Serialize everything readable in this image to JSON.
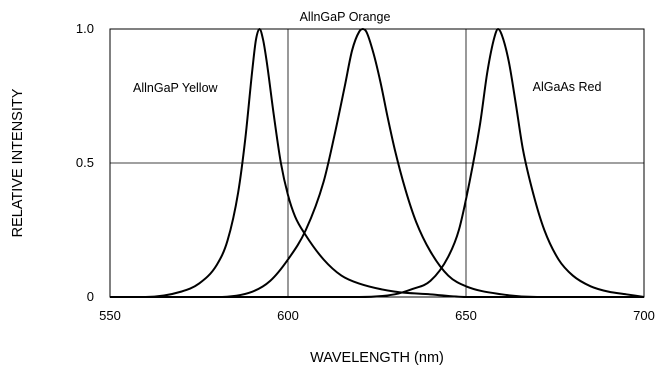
{
  "chart_data": {
    "type": "line",
    "title": "",
    "xlabel": "WAVELENGTH (nm)",
    "ylabel": "RELATIVE INTENSITY",
    "xlim": [
      550,
      700
    ],
    "ylim": [
      0,
      1.0
    ],
    "x_ticks": [
      {
        "value": 550,
        "label": "550"
      },
      {
        "value": 600,
        "label": "600"
      },
      {
        "value": 650,
        "label": "650"
      },
      {
        "value": 700,
        "label": "700"
      }
    ],
    "y_ticks": [
      {
        "value": 0,
        "label": "0"
      },
      {
        "value": 0.5,
        "label": "0.5"
      },
      {
        "value": 1.0,
        "label": "1.0"
      }
    ],
    "grid": true,
    "legend": "none (series labelled directly on the plot)",
    "line_color": "#000000",
    "series": [
      {
        "name": "AllnGaP Yellow",
        "peak_x": 592,
        "x": [
          550,
          560,
          570,
          575,
          580,
          583,
          586,
          588,
          590,
          591,
          592,
          593,
          594,
          596,
          598,
          600,
          602,
          605,
          610,
          615,
          620,
          630,
          640,
          650,
          660,
          670,
          680,
          690,
          700
        ],
        "y": [
          0.0,
          0.0,
          0.02,
          0.05,
          0.12,
          0.21,
          0.39,
          0.59,
          0.85,
          0.96,
          1.0,
          0.96,
          0.88,
          0.68,
          0.5,
          0.38,
          0.3,
          0.23,
          0.14,
          0.08,
          0.05,
          0.02,
          0.01,
          0.0,
          0.0,
          0.0,
          0.0,
          0.0,
          0.0
        ]
      },
      {
        "name": "AllnGaP Orange",
        "peak_x": 621,
        "x": [
          550,
          570,
          580,
          590,
          595,
          600,
          605,
          610,
          613,
          616,
          618,
          620,
          621,
          622,
          624,
          626,
          628,
          630,
          633,
          636,
          640,
          645,
          650,
          660,
          670,
          680,
          690,
          700
        ],
        "y": [
          0.0,
          0.0,
          0.0,
          0.02,
          0.06,
          0.14,
          0.25,
          0.43,
          0.6,
          0.79,
          0.92,
          0.99,
          1.0,
          0.99,
          0.91,
          0.8,
          0.67,
          0.55,
          0.4,
          0.28,
          0.17,
          0.08,
          0.04,
          0.01,
          0.0,
          0.0,
          0.0,
          0.0
        ]
      },
      {
        "name": "AlGaAs Red",
        "peak_x": 659,
        "x": [
          550,
          600,
          620,
          630,
          635,
          640,
          645,
          648,
          651,
          654,
          656,
          658,
          659,
          660,
          662,
          664,
          666,
          669,
          672,
          676,
          680,
          685,
          690,
          695,
          700
        ],
        "y": [
          0.0,
          0.0,
          0.0,
          0.01,
          0.03,
          0.06,
          0.15,
          0.25,
          0.43,
          0.65,
          0.84,
          0.97,
          1.0,
          0.98,
          0.88,
          0.72,
          0.55,
          0.38,
          0.25,
          0.14,
          0.08,
          0.04,
          0.02,
          0.01,
          0.0
        ]
      }
    ]
  }
}
